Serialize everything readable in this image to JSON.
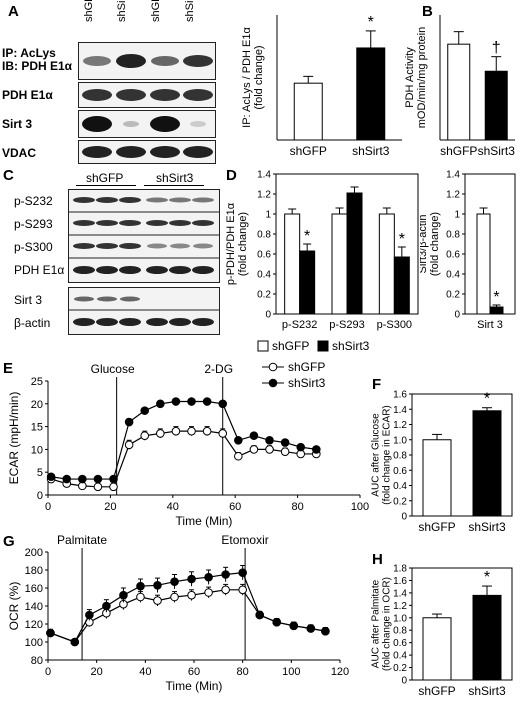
{
  "panel_labels": {
    "A": "A",
    "B": "B",
    "C": "C",
    "D": "D",
    "E": "E",
    "F": "F",
    "G": "G",
    "H": "H"
  },
  "panelA": {
    "lanes": [
      "shGFP",
      "shSirt3",
      "shGFP",
      "shSirt3"
    ],
    "row_labels": [
      "IP: AcLys",
      "IB: PDH E1α",
      "PDH E1α",
      "Sirt 3",
      "VDAC"
    ]
  },
  "panelC": {
    "group_labels": [
      "shGFP",
      "shSirt3"
    ],
    "row_labels": [
      "p-S232",
      "p-S293",
      "p-S300",
      "PDH E1α",
      "Sirt 3",
      "β-actin"
    ]
  },
  "chart_data": [
    {
      "id": "A-bar",
      "type": "bar",
      "ylabel": "IP: AcLys / PDH E1α\n(fold change)",
      "categories": [
        "shGFP",
        "shSirt3"
      ],
      "values": [
        1.0,
        1.62
      ],
      "errors": [
        0.12,
        0.3
      ],
      "ylim": [
        0,
        2.2
      ],
      "annotations": {
        "shSirt3": "*"
      },
      "colors": [
        "#ffffff",
        "#000000"
      ]
    },
    {
      "id": "B-bar",
      "type": "bar",
      "ylabel": "PDH Activity\nmOD/min/mg protein",
      "categories": [
        "shGFP",
        "shSirt3"
      ],
      "values": [
        46,
        33
      ],
      "errors": [
        6,
        7
      ],
      "ylim": [
        0,
        60
      ],
      "annotations": {
        "shSirt3": "†"
      },
      "colors": [
        "#ffffff",
        "#000000"
      ]
    },
    {
      "id": "D-bar",
      "type": "bar",
      "ylabel": "p-PDH/PDH E1α\n(fold change)",
      "categories": [
        "p-S232",
        "p-S293",
        "p-S300"
      ],
      "series": [
        {
          "name": "shGFP",
          "values": [
            1.0,
            1.0,
            1.0
          ],
          "errors": [
            0.05,
            0.06,
            0.06
          ]
        },
        {
          "name": "shSirt3",
          "values": [
            0.63,
            1.21,
            0.57
          ],
          "errors": [
            0.07,
            0.06,
            0.1
          ]
        }
      ],
      "ylim": [
        0,
        1.4
      ],
      "yticks": [
        "0",
        "0.2",
        "0.4",
        "0.6",
        "0.8",
        "1",
        "1.2",
        "1.4"
      ],
      "annotations": {
        "p-S232": "*",
        "p-S300": "*"
      },
      "colors": [
        "#ffffff",
        "#000000"
      ]
    },
    {
      "id": "D-sirt3",
      "type": "bar",
      "ylabel": "Sirt3/β-actin\n(fold change)",
      "categories": [
        "Sirt 3"
      ],
      "series": [
        {
          "name": "shGFP",
          "values": [
            1.0
          ],
          "errors": [
            0.06
          ]
        },
        {
          "name": "shSirt3",
          "values": [
            0.07
          ],
          "errors": [
            0.02
          ]
        }
      ],
      "ylim": [
        0,
        1.4
      ],
      "yticks": [
        "0",
        "0.2",
        "0.4",
        "0.6",
        "0.8",
        "1",
        "1.2",
        "1.4"
      ],
      "annotations": {
        "Sirt 3": "*"
      }
    },
    {
      "id": "E-line",
      "type": "line",
      "xlabel": "Time (Min)",
      "ylabel": "ECAR (mpH/min)",
      "xlim": [
        0,
        100
      ],
      "ylim": [
        0,
        25
      ],
      "xticks": [
        0,
        20,
        40,
        60,
        80,
        100
      ],
      "yticks": [
        0,
        5,
        10,
        15,
        20,
        25
      ],
      "vlines": [
        {
          "x": 22,
          "label": "Glucose"
        },
        {
          "x": 56,
          "label": "2-DG"
        }
      ],
      "x": [
        1,
        6,
        11,
        16,
        21,
        26,
        31,
        36,
        41,
        46,
        51,
        56,
        61,
        66,
        71,
        76,
        81,
        86
      ],
      "series": [
        {
          "name": "shGFP",
          "marker": "open",
          "values": [
            3.5,
            2.5,
            2.0,
            1.8,
            1.8,
            11.0,
            13.0,
            13.5,
            14.0,
            14.0,
            14.0,
            13.5,
            8.5,
            10.0,
            10.0,
            9.5,
            9.0,
            9.0
          ],
          "errors": [
            0.6,
            0.5,
            0.5,
            0.5,
            0.5,
            1.0,
            1.0,
            1.0,
            1.0,
            1.0,
            1.0,
            1.0,
            0.8,
            0.8,
            0.8,
            0.8,
            0.8,
            0.8
          ]
        },
        {
          "name": "shSirt3",
          "marker": "filled",
          "values": [
            4.0,
            3.5,
            3.5,
            3.5,
            3.5,
            16.0,
            18.5,
            20.0,
            20.5,
            20.5,
            20.5,
            20.0,
            12.0,
            13.0,
            12.0,
            11.5,
            10.5,
            10.0
          ],
          "errors": [
            0.6,
            0.5,
            0.5,
            0.5,
            0.5,
            0.5,
            0.5,
            0.4,
            0.4,
            0.4,
            0.4,
            0.4,
            0.5,
            0.5,
            0.5,
            0.5,
            0.5,
            0.5
          ]
        }
      ],
      "legend": "top-right"
    },
    {
      "id": "F-bar",
      "type": "bar",
      "ylabel": "AUC  after Glucose\n(fold change in ECAR)",
      "categories": [
        "shGFP",
        "shSirt3"
      ],
      "values": [
        1.0,
        1.38
      ],
      "errors": [
        0.07,
        0.04
      ],
      "ylim": [
        0,
        1.6
      ],
      "yticks": [
        "0",
        "0.2",
        "0.4",
        "0.6",
        "0.8",
        "1.0",
        "1.2",
        "1.4",
        "1.6"
      ],
      "annotations": {
        "shSirt3": "*"
      }
    },
    {
      "id": "G-line",
      "type": "line",
      "xlabel": "Time (Min)",
      "ylabel": "OCR (%)",
      "xlim": [
        0,
        120
      ],
      "ylim": [
        80,
        200
      ],
      "xticks": [
        0,
        20,
        40,
        60,
        80,
        100,
        120
      ],
      "yticks": [
        80,
        100,
        120,
        140,
        160,
        180,
        200
      ],
      "vlines": [
        {
          "x": 14,
          "label": "Palmitate"
        },
        {
          "x": 81,
          "label": "Etomoxir"
        }
      ],
      "x": [
        1,
        11,
        17,
        24,
        31,
        38,
        45,
        52,
        59,
        66,
        73,
        80,
        87,
        94,
        101,
        108,
        114
      ],
      "series": [
        {
          "name": "shGFP",
          "marker": "open",
          "values": [
            110,
            100,
            122,
            132,
            142,
            150,
            146,
            150,
            152,
            155,
            158,
            158,
            130,
            122,
            118,
            115,
            112
          ],
          "errors": [
            4,
            2,
            5,
            6,
            6,
            6,
            6,
            6,
            6,
            6,
            6,
            6,
            4,
            4,
            4,
            4,
            4
          ]
        },
        {
          "name": "shSirt3",
          "marker": "filled",
          "values": [
            110,
            100,
            130,
            140,
            152,
            162,
            163,
            167,
            170,
            172,
            175,
            177,
            130,
            122,
            118,
            115,
            112
          ],
          "errors": [
            4,
            2,
            6,
            7,
            8,
            8,
            8,
            8,
            8,
            8,
            8,
            8,
            4,
            4,
            4,
            4,
            4
          ]
        }
      ]
    },
    {
      "id": "H-bar",
      "type": "bar",
      "ylabel": "AUC  after Palmitate\n(fold change in OCR)",
      "categories": [
        "shGFP",
        "shSirt3"
      ],
      "values": [
        1.0,
        1.36
      ],
      "errors": [
        0.06,
        0.15
      ],
      "ylim": [
        0,
        1.8
      ],
      "yticks": [
        "0",
        "0.2",
        "0.4",
        "0.6",
        "0.8",
        "1.0",
        "1.2",
        "1.4",
        "1.6",
        "1.8"
      ],
      "annotations": {
        "shSirt3": "*"
      }
    }
  ]
}
